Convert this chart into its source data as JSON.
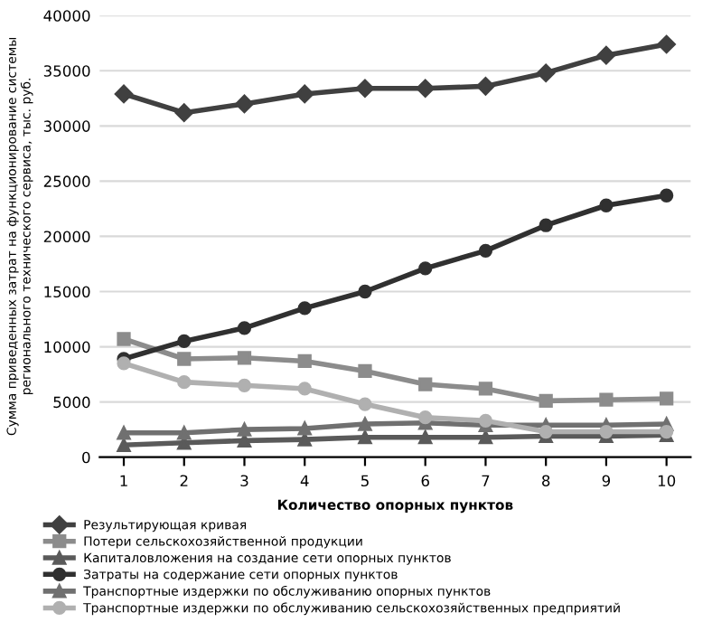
{
  "chart_data": {
    "type": "line",
    "xlabel": "Количество опорных пунктов",
    "ylabel": "Сумма приведенных затрат на функционирование системы регионального технического сервиса, тыс. руб.",
    "categories": [
      "1",
      "2",
      "3",
      "4",
      "5",
      "6",
      "7",
      "8",
      "9",
      "10"
    ],
    "ylim": [
      0,
      40000
    ],
    "yticks": [
      0,
      5000,
      10000,
      15000,
      20000,
      25000,
      30000,
      35000,
      40000
    ],
    "grid": "y",
    "legend": "bottom",
    "series": [
      {
        "name": "Результирующая кривая",
        "color": "#404040",
        "marker": "diamond",
        "values": [
          32900,
          31200,
          32000,
          32900,
          33400,
          33400,
          33600,
          34800,
          36400,
          37400
        ]
      },
      {
        "name": "Потери сельскохозяйственной продукции",
        "color": "#8c8c8c",
        "marker": "square",
        "values": [
          10700,
          8900,
          9000,
          8700,
          7800,
          6600,
          6200,
          5100,
          5200,
          5300
        ]
      },
      {
        "name": "Капиталовложения на создание сети опорных пунктов",
        "color": "#5a5a5a",
        "marker": "triangle",
        "values": [
          1100,
          1300,
          1500,
          1600,
          1800,
          1800,
          1800,
          1900,
          1900,
          2000
        ]
      },
      {
        "name": "Затраты на содержание сети опорных пунктов",
        "color": "#303030",
        "marker": "circle",
        "values": [
          8900,
          10500,
          11700,
          13500,
          15000,
          17100,
          18700,
          21000,
          22800,
          23700
        ]
      },
      {
        "name": "Транспортные издержки по обслуживанию опорных пунктов",
        "color": "#707070",
        "marker": "triangle",
        "values": [
          2200,
          2200,
          2500,
          2600,
          3000,
          3100,
          2900,
          2900,
          2900,
          3000
        ]
      },
      {
        "name": "Транспортные издержки по обслуживанию сельскохозяйственных предприятий",
        "color": "#b0b0b0",
        "marker": "circle",
        "values": [
          8500,
          6800,
          6500,
          6200,
          4800,
          3600,
          3300,
          2300,
          2300,
          2300
        ]
      }
    ]
  }
}
